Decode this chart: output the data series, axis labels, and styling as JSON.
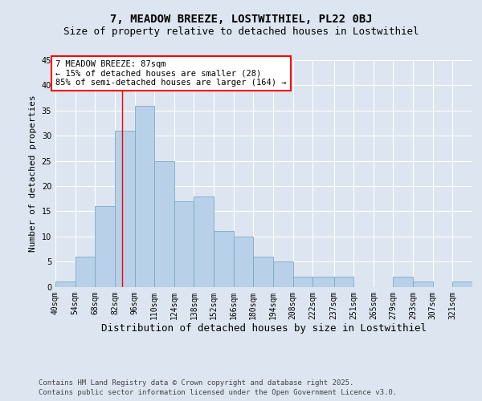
{
  "title": "7, MEADOW BREEZE, LOSTWITHIEL, PL22 0BJ",
  "subtitle": "Size of property relative to detached houses in Lostwithiel",
  "xlabel": "Distribution of detached houses by size in Lostwithiel",
  "ylabel": "Number of detached properties",
  "bin_edges": [
    40,
    54,
    68,
    82,
    96,
    110,
    124,
    138,
    152,
    166,
    180,
    194,
    208,
    222,
    237,
    251,
    265,
    279,
    293,
    307,
    321,
    335
  ],
  "counts": [
    1,
    6,
    16,
    31,
    36,
    25,
    17,
    18,
    11,
    10,
    6,
    5,
    2,
    2,
    2,
    0,
    0,
    2,
    1,
    0,
    1
  ],
  "bar_color": "#b8d0e8",
  "bar_edge_color": "#7aaac8",
  "red_line_x": 87,
  "annotation_line1": "7 MEADOW BREEZE: 87sqm",
  "annotation_line2": "← 15% of detached houses are smaller (28)",
  "annotation_line3": "85% of semi-detached houses are larger (164) →",
  "annotation_box_color": "white",
  "annotation_box_edge_color": "red",
  "ylim": [
    0,
    45
  ],
  "yticks": [
    0,
    5,
    10,
    15,
    20,
    25,
    30,
    35,
    40,
    45
  ],
  "background_color": "#dde6f0",
  "grid_color": "white",
  "footer_line1": "Contains HM Land Registry data © Crown copyright and database right 2025.",
  "footer_line2": "Contains public sector information licensed under the Open Government Licence v3.0.",
  "title_fontsize": 10,
  "subtitle_fontsize": 9,
  "xlabel_fontsize": 9,
  "ylabel_fontsize": 8,
  "tick_fontsize": 7,
  "annotation_fontsize": 7.5,
  "footer_fontsize": 6.5
}
